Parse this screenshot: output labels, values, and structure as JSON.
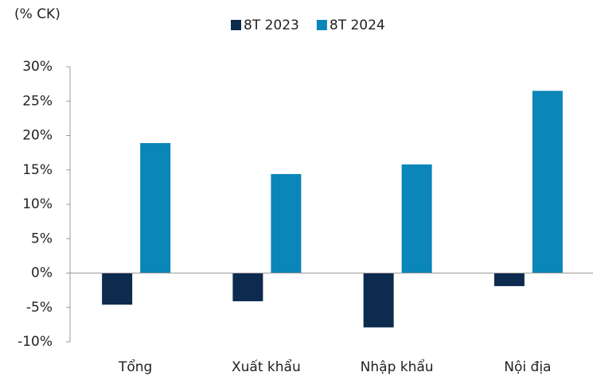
{
  "chart_data": {
    "type": "bar",
    "unit_label": "(% CK)",
    "categories": [
      "Tổng",
      "Xuất khẩu",
      "Nhập khẩu",
      "Nội địa"
    ],
    "series": [
      {
        "name": "8T 2023",
        "color": "#0d2b4e",
        "values": [
          -4.6,
          -4.1,
          -7.9,
          -1.9
        ]
      },
      {
        "name": "8T 2024",
        "color": "#0a86b9",
        "values": [
          18.9,
          14.4,
          15.8,
          26.5
        ]
      }
    ],
    "ylim": [
      -10,
      30
    ],
    "yticks": [
      {
        "value": -10,
        "label": "-10%"
      },
      {
        "value": -5,
        "label": "-5%"
      },
      {
        "value": 0,
        "label": "0%"
      },
      {
        "value": 5,
        "label": "5%"
      },
      {
        "value": 10,
        "label": "10%"
      },
      {
        "value": 15,
        "label": "15%"
      },
      {
        "value": 20,
        "label": "20%"
      },
      {
        "value": 25,
        "label": "25%"
      },
      {
        "value": 30,
        "label": "30%"
      }
    ],
    "legend": "top"
  }
}
